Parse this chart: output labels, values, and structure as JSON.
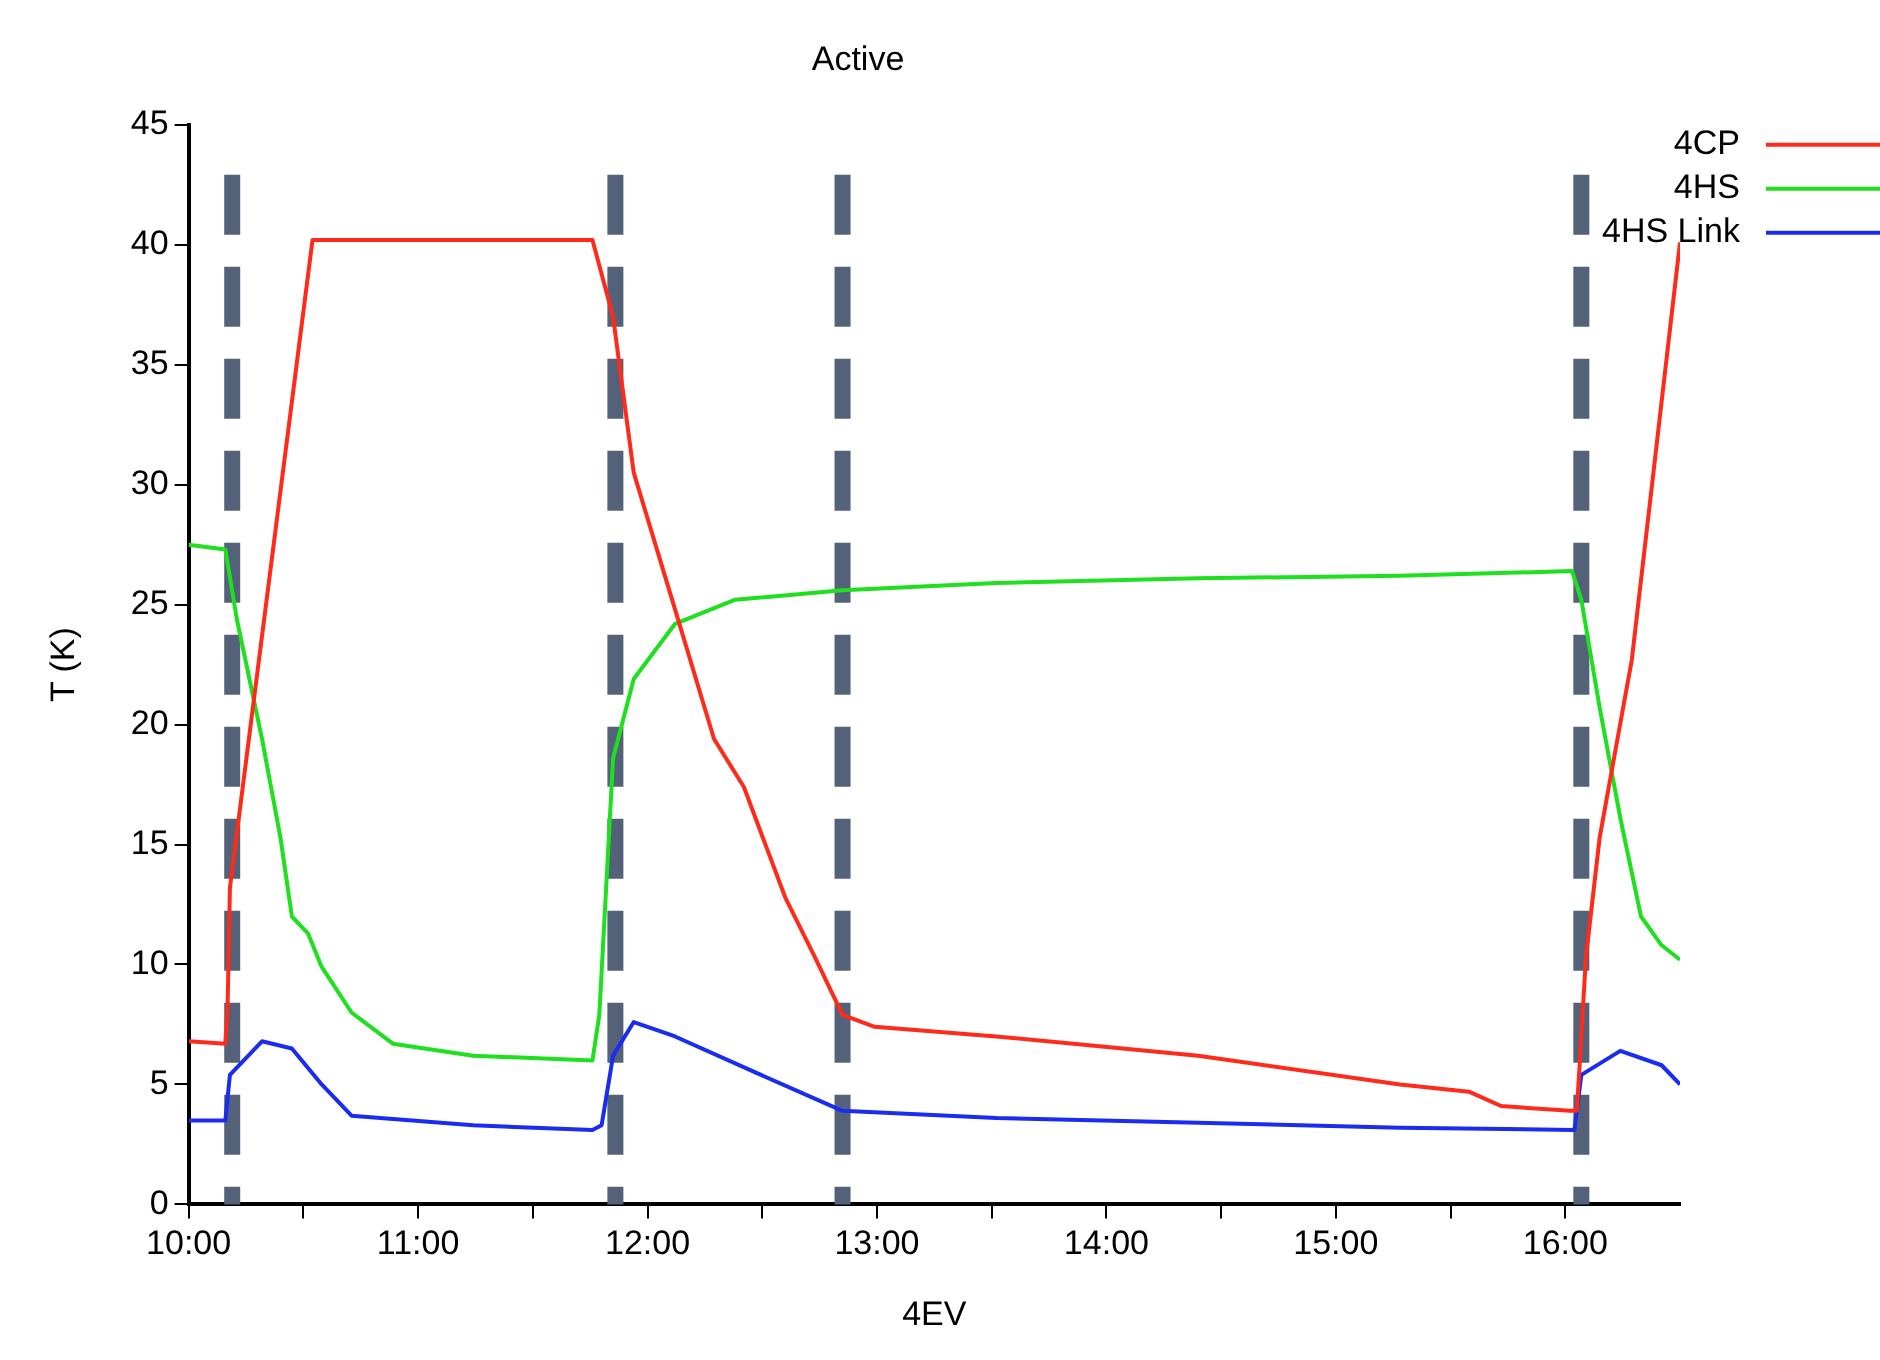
{
  "chart_data": {
    "type": "line",
    "title": "Active",
    "xlabel": "4EV",
    "ylabel": "T (K)",
    "xlim": [
      10,
      16.5
    ],
    "ylim": [
      0,
      45
    ],
    "xticks": [
      {
        "value": 10,
        "label": "10:00"
      },
      {
        "value": 10.5,
        "label": null
      },
      {
        "value": 11,
        "label": "11:00"
      },
      {
        "value": 11.5,
        "label": null
      },
      {
        "value": 12,
        "label": "12:00"
      },
      {
        "value": 12.5,
        "label": null
      },
      {
        "value": 13,
        "label": "13:00"
      },
      {
        "value": 13.5,
        "label": null
      },
      {
        "value": 14,
        "label": "14:00"
      },
      {
        "value": 14.5,
        "label": null
      },
      {
        "value": 15,
        "label": "15:00"
      },
      {
        "value": 15.5,
        "label": null
      },
      {
        "value": 16,
        "label": "16:00"
      }
    ],
    "yticks": [
      0,
      5,
      10,
      15,
      20,
      25,
      30,
      35,
      40,
      45
    ],
    "grid": false,
    "legend": "top right",
    "marker": "none",
    "line_style": "solid",
    "ref_lines": [
      {
        "axis": "x",
        "value": 10.19,
        "color": "#536278",
        "line_style": "dashed"
      },
      {
        "axis": "x",
        "value": 11.86,
        "color": "#536278",
        "line_style": "dashed"
      },
      {
        "axis": "x",
        "value": 12.85,
        "color": "#536278",
        "line_style": "dashed"
      },
      {
        "axis": "x",
        "value": 16.07,
        "color": "#536278",
        "line_style": "dashed"
      }
    ],
    "series": [
      {
        "name": "4CP",
        "color": "#ff2a1a",
        "x": [
          10,
          10.16,
          10.17,
          10.18,
          10.54,
          11.76,
          11.85,
          11.94,
          12.12,
          12.29,
          12.42,
          12.6,
          12.73,
          12.85,
          12.99,
          13.52,
          14.4,
          15.28,
          15.58,
          15.72,
          16.02,
          16.05,
          16.06,
          16.09,
          16.15,
          16.29,
          16.5
        ],
        "values": [
          6.8,
          6.7,
          8.3,
          13.2,
          40.2,
          40.2,
          37,
          30.5,
          24.8,
          19.4,
          17.4,
          12.8,
          10.3,
          7.9,
          7.4,
          7.0,
          6.2,
          5.0,
          4.7,
          4.1,
          3.9,
          3.9,
          5.4,
          10.3,
          15.3,
          22.7,
          40.1
        ]
      },
      {
        "name": "4HS",
        "color": "#1ee01e",
        "x": [
          10,
          10.16,
          10.21,
          10.32,
          10.4,
          10.45,
          10.52,
          10.58,
          10.71,
          10.89,
          11.24,
          11.76,
          11.79,
          11.85,
          11.94,
          12.12,
          12.38,
          12.85,
          13.52,
          14.4,
          15.28,
          16.03,
          16.07,
          16.15,
          16.24,
          16.33,
          16.42,
          16.5
        ],
        "values": [
          27.5,
          27.3,
          24.4,
          19.4,
          15.3,
          12,
          11.3,
          9.9,
          8.0,
          6.7,
          6.2,
          6.0,
          7.9,
          18.6,
          21.9,
          24.2,
          25.2,
          25.6,
          25.9,
          26.1,
          26.2,
          26.4,
          25.2,
          20.7,
          16.1,
          12,
          10.8,
          10.2
        ]
      },
      {
        "name": "4HS Link",
        "color": "#1a2cf0",
        "x": [
          10,
          10.16,
          10.18,
          10.32,
          10.45,
          10.58,
          10.71,
          11.24,
          11.76,
          11.8,
          11.85,
          11.94,
          12.12,
          12.47,
          12.85,
          13.52,
          14.4,
          15.28,
          16.04,
          16.07,
          16.24,
          16.42,
          16.5
        ],
        "values": [
          3.5,
          3.5,
          5.4,
          6.8,
          6.5,
          5.0,
          3.7,
          3.3,
          3.1,
          3.3,
          6.2,
          7.6,
          7.0,
          5.5,
          3.9,
          3.6,
          3.4,
          3.2,
          3.1,
          5.4,
          6.4,
          5.8,
          5.0
        ]
      }
    ]
  }
}
